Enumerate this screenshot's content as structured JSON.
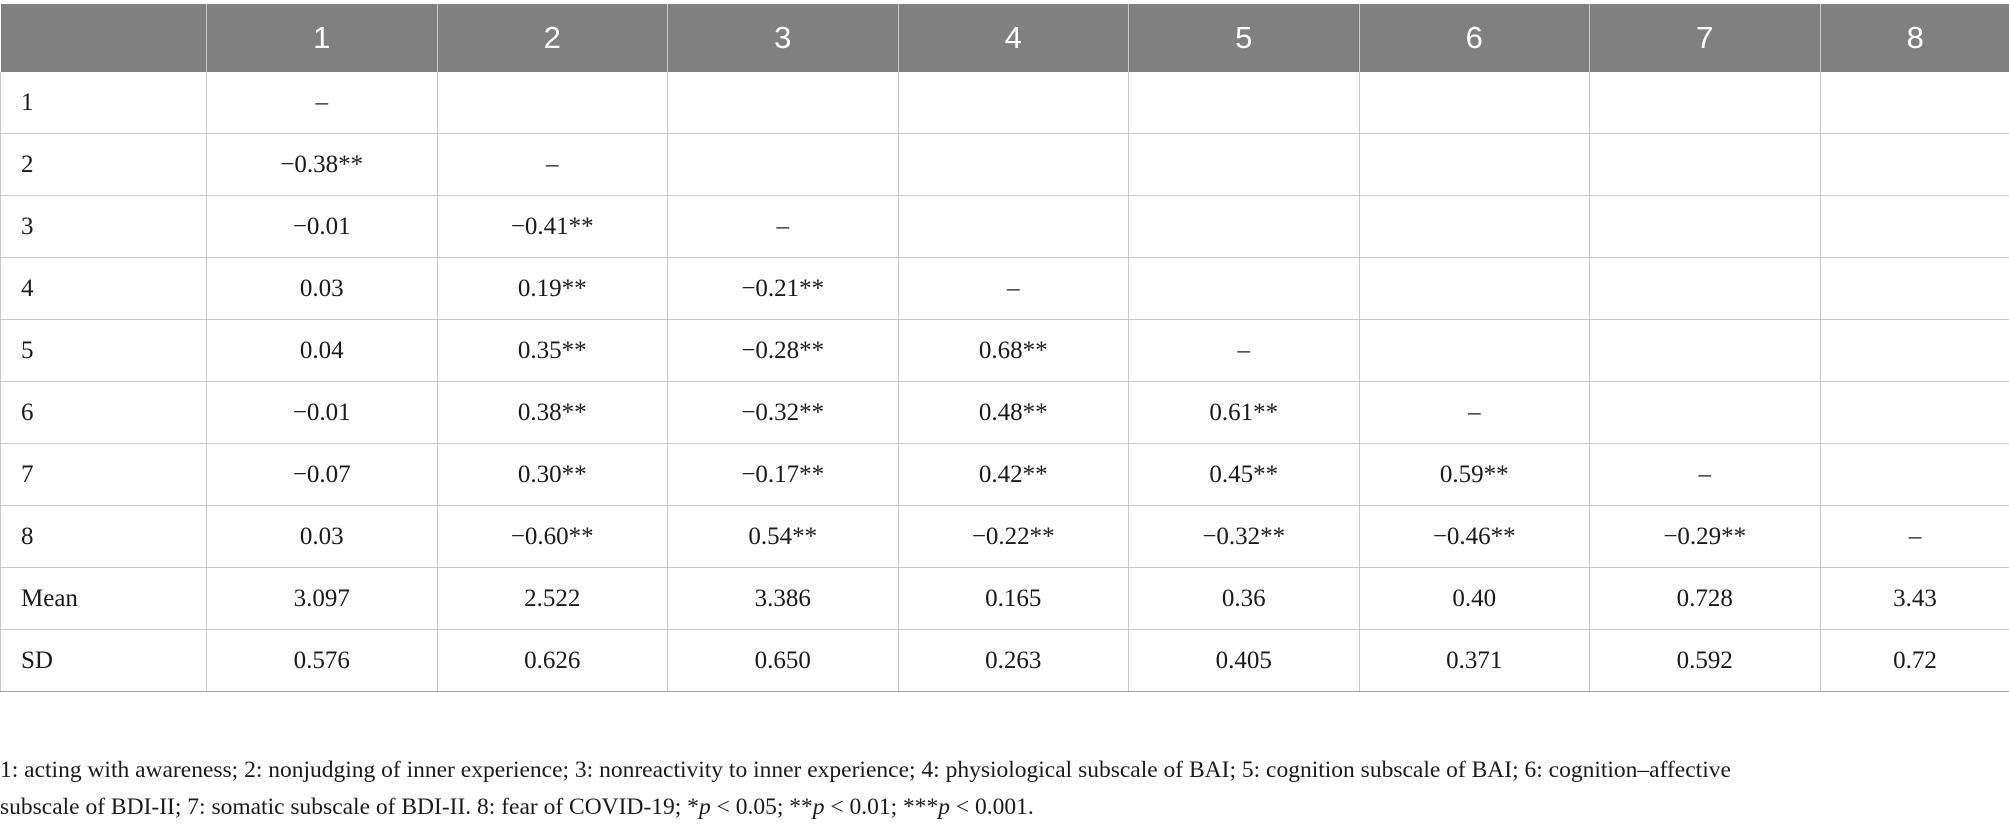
{
  "table": {
    "headers": [
      "",
      "1",
      "2",
      "3",
      "4",
      "5",
      "6",
      "7",
      "8"
    ],
    "rows": [
      [
        "1",
        "–",
        "",
        "",
        "",
        "",
        "",
        "",
        ""
      ],
      [
        "2",
        "−0.38**",
        "–",
        "",
        "",
        "",
        "",
        "",
        ""
      ],
      [
        "3",
        "−0.01",
        "−0.41**",
        "–",
        "",
        "",
        "",
        "",
        ""
      ],
      [
        "4",
        "0.03",
        "0.19**",
        "−0.21**",
        "–",
        "",
        "",
        "",
        ""
      ],
      [
        "5",
        "0.04",
        "0.35**",
        "−0.28**",
        "0.68**",
        "–",
        "",
        "",
        ""
      ],
      [
        "6",
        "−0.01",
        "0.38**",
        "−0.32**",
        "0.48**",
        "0.61**",
        "–",
        "",
        ""
      ],
      [
        "7",
        "−0.07",
        "0.30**",
        "−0.17**",
        "0.42**",
        "0.45**",
        "0.59**",
        "–",
        ""
      ],
      [
        "8",
        "0.03",
        "−0.60**",
        "0.54**",
        "−0.22**",
        "−0.32**",
        "−0.46**",
        "−0.29**",
        "–"
      ],
      [
        "Mean",
        "3.097",
        "2.522",
        "3.386",
        "0.165",
        "0.36",
        "0.40",
        "0.728",
        "3.43"
      ],
      [
        "SD",
        "0.576",
        "0.626",
        "0.650",
        "0.263",
        "0.405",
        "0.371",
        "0.592",
        "0.72"
      ]
    ]
  },
  "note": {
    "line1": "1: acting with awareness; 2: nonjudging of inner experience; 3: nonreactivity to inner experience; 4: physiological subscale of BAI; 5: cognition subscale of BAI; 6: cognition–affective",
    "line2_prefix": "subscale of BDI-II; 7: somatic subscale of BDI-II. 8: fear of COVID-19; *",
    "p_symbol": "p",
    "t1": " < 0.05; **",
    "t2": " < 0.01; ***",
    "t3": " < 0.001."
  },
  "colors": {
    "header_bg": "#808080",
    "header_text": "#ffffff",
    "grid": "#c8c8c8"
  }
}
